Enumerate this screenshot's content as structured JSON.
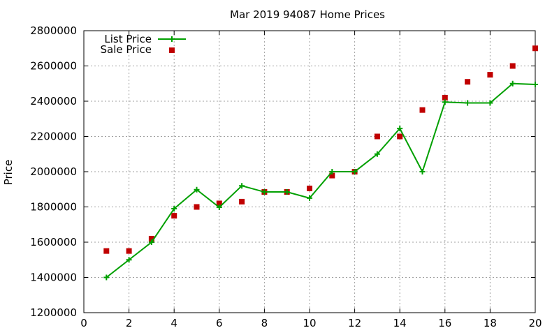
{
  "chart_data": {
    "type": "line",
    "title": "Mar 2019 94087 Home Prices",
    "xlabel": "",
    "ylabel": "Price",
    "xlim": [
      0,
      20
    ],
    "ylim": [
      1200000,
      2800000
    ],
    "xticks": [
      0,
      2,
      4,
      6,
      8,
      10,
      12,
      14,
      16,
      18,
      20
    ],
    "yticks": [
      1200000,
      1400000,
      1600000,
      1800000,
      2000000,
      2200000,
      2400000,
      2600000,
      2800000
    ],
    "xtick_labels": [
      "0",
      "2",
      "4",
      "6",
      "8",
      "10",
      "12",
      "14",
      "16",
      "18",
      "20"
    ],
    "ytick_labels": [
      "1200000",
      "1400000",
      "1600000",
      "1800000",
      "2000000",
      "2200000",
      "2400000",
      "2600000",
      "2800000"
    ],
    "grid": true,
    "legend_position": "top-left",
    "series": [
      {
        "name": "List Price",
        "style": "lines+points",
        "marker": "plus",
        "color": "#00a000",
        "x": [
          1,
          2,
          3,
          4,
          5,
          6,
          7,
          8,
          9,
          10,
          11,
          12,
          13,
          14,
          15,
          16,
          17,
          18,
          19,
          20
        ],
        "y": [
          1400000,
          1500000,
          1600000,
          1790000,
          1898000,
          1798000,
          1920000,
          1885000,
          1885000,
          1850000,
          2000000,
          2000000,
          2100000,
          2245000,
          2000000,
          2395000,
          2390000,
          2390000,
          2500000,
          2495000
        ]
      },
      {
        "name": "Sale Price",
        "style": "points",
        "marker": "square",
        "color": "#c00000",
        "x": [
          1,
          2,
          3,
          4,
          5,
          6,
          7,
          8,
          9,
          10,
          11,
          12,
          13,
          14,
          15,
          16,
          17,
          18,
          19,
          20
        ],
        "y": [
          1550000,
          1550000,
          1620000,
          1750000,
          1800000,
          1820000,
          1830000,
          1885000,
          1885000,
          1905000,
          1978000,
          2000000,
          2200000,
          2200000,
          2350000,
          2420000,
          2510000,
          2550000,
          2600000,
          2700000
        ]
      }
    ]
  }
}
